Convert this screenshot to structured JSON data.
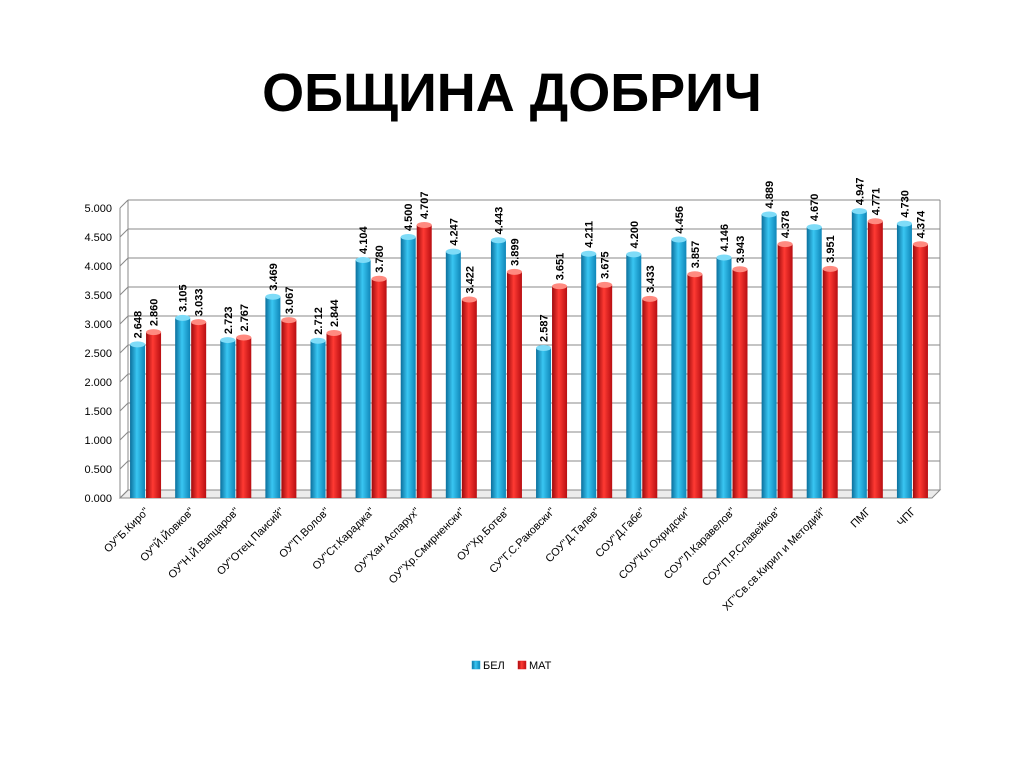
{
  "title": "ОБЩИНА ДОБРИЧ",
  "chart_data": {
    "type": "bar",
    "title": "",
    "xlabel": "",
    "ylabel": "",
    "ylim": [
      0,
      5
    ],
    "yticks": [
      "0.000",
      "0.500",
      "1.000",
      "1.500",
      "2.000",
      "2.500",
      "3.000",
      "3.500",
      "4.000",
      "4.500",
      "5.000"
    ],
    "grid": true,
    "legend_position": "bottom",
    "categories": [
      "ОУ\"Б.Киро\"",
      "ОУ\"Й.Йовков\"",
      "ОУ\"Н.Й.Вапцаров\"",
      "ОУ\"Отец Паисий\"",
      "ОУ\"П.Волов\"",
      "ОУ\"Ст.Караджа\"",
      "ОУ\"Хан Аспарух\"",
      "ОУ\"Хр.Смирненски\"",
      "ОУ\"Хр.Ботев\"",
      "СУ\"Г.С.Раковски\"",
      "СОУ\"Д.Талев\"",
      "СОУ\"Д.Габе\"",
      "СОУ\"Кл.Охридски\"",
      "СОУ\"Л.Каравелов\"",
      "СОУ\"П.Р.Славейков\"",
      "ХГ\"Св.св.Кирил и Методий\"",
      "ПМГ",
      "ЧПГ"
    ],
    "series": [
      {
        "name": "БЕЛ",
        "color": "#1aa3d8",
        "values": [
          2.648,
          3.105,
          2.723,
          3.469,
          2.712,
          4.104,
          4.5,
          4.247,
          4.443,
          2.587,
          4.211,
          4.2,
          4.456,
          4.146,
          4.889,
          4.67,
          4.947,
          4.73
        ],
        "labels": [
          "2.648",
          "3.105",
          "2.723",
          "3.469",
          "2.712",
          "4.104",
          "4.500",
          "4.247",
          "4.443",
          "2.587",
          "4.211",
          "4.200",
          "4.456",
          "4.146",
          "4.889",
          "4.670",
          "4.947",
          "4.730"
        ]
      },
      {
        "name": "МАТ",
        "color": "#e3161b",
        "values": [
          2.86,
          3.033,
          2.767,
          3.067,
          2.844,
          3.78,
          4.707,
          3.422,
          3.899,
          3.651,
          3.675,
          3.433,
          3.857,
          3.943,
          4.378,
          3.951,
          4.771,
          4.374
        ],
        "labels": [
          "2.860",
          "3.033",
          "2.767",
          "3.067",
          "2.844",
          "3.780",
          "4.707",
          "3.422",
          "3.899",
          "3.651",
          "3.675",
          "3.433",
          "3.857",
          "3.943",
          "4.378",
          "3.951",
          "4.771",
          "4.374"
        ]
      }
    ]
  }
}
